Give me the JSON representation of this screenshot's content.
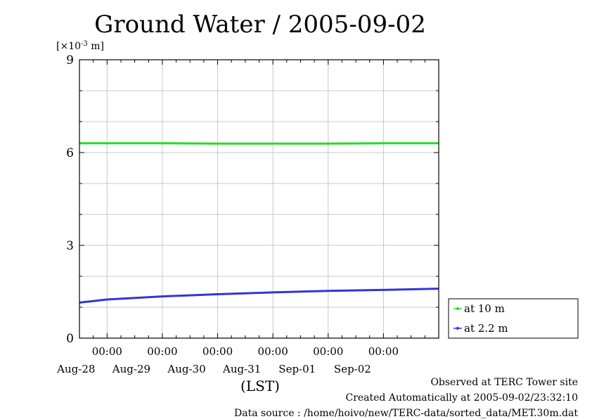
{
  "chart_data": {
    "type": "line",
    "title": "Ground Water / 2005-09-02",
    "ylabel_prefix": "[×10",
    "ylabel_exp": "-3",
    "ylabel_suffix": " m]",
    "xlabel": "(LST)",
    "ylim": [
      0,
      9
    ],
    "y_ticks": [
      "0",
      "3",
      "6",
      "9"
    ],
    "xlim": [
      "2005-08-27T12:00",
      "2005-09-03T00:00"
    ],
    "x_ticks": [
      {
        "time": "00:00",
        "date": "Aug-28",
        "at": "2005-08-28T00:00"
      },
      {
        "time": "00:00",
        "date": "Aug-29",
        "at": "2005-08-29T00:00"
      },
      {
        "time": "00:00",
        "date": "Aug-30",
        "at": "2005-08-30T00:00"
      },
      {
        "time": "00:00",
        "date": "Aug-31",
        "at": "2005-08-31T00:00"
      },
      {
        "time": "00:00",
        "date": "Sep-01",
        "at": "2005-09-01T00:00"
      },
      {
        "time": "00:00",
        "date": "Sep-02",
        "at": "2005-09-02T00:00"
      }
    ],
    "grid": true,
    "legend_placement": "bottom-right outside",
    "series": [
      {
        "name": "at 10 m",
        "color": "#22dd22",
        "x": [
          "2005-08-27T12:00",
          "2005-08-28T00:00",
          "2005-08-29T00:00",
          "2005-08-30T00:00",
          "2005-08-31T00:00",
          "2005-09-01T00:00",
          "2005-09-02T00:00",
          "2005-09-03T00:00"
        ],
        "values": [
          6.3,
          6.3,
          6.3,
          6.29,
          6.29,
          6.29,
          6.3,
          6.3
        ]
      },
      {
        "name": "at 2.2 m",
        "color": "#3333dd",
        "x": [
          "2005-08-27T12:00",
          "2005-08-28T00:00",
          "2005-08-29T00:00",
          "2005-08-30T00:00",
          "2005-08-31T00:00",
          "2005-09-01T00:00",
          "2005-09-02T00:00",
          "2005-09-03T00:00"
        ],
        "values": [
          1.15,
          1.25,
          1.35,
          1.42,
          1.48,
          1.53,
          1.56,
          1.6
        ]
      }
    ]
  },
  "footer": {
    "line1": "Observed at TERC Tower site",
    "line2": "Created Automatically at 2005-09-02/23:32:10",
    "line3": "Data source : /home/hoivo/new/TERC-data/sorted_data/MET.30m.dat"
  }
}
